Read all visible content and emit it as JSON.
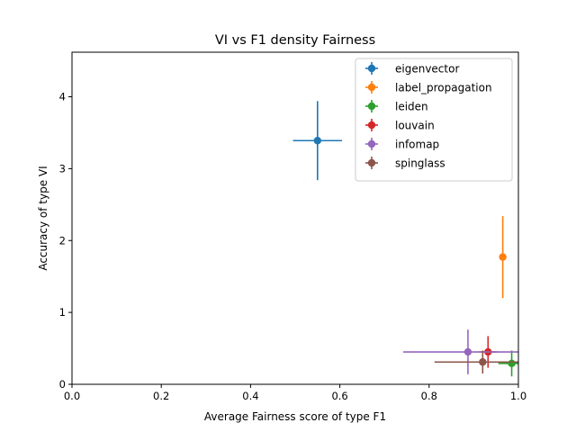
{
  "chart_data": {
    "type": "scatter",
    "title": "VI vs F1 density Fairness",
    "xlabel": "Average Fairness score of type F1",
    "ylabel": "Accuracy of type VI",
    "xlim": [
      0.0,
      1.0
    ],
    "ylim": [
      0.0,
      4.62
    ],
    "xticks": [
      "0.0",
      "0.2",
      "0.4",
      "0.6",
      "0.8",
      "1.0"
    ],
    "yticks": [
      "0",
      "1",
      "2",
      "3",
      "4"
    ],
    "grid": false,
    "legend_position": "top-right",
    "error_bars": true,
    "series": [
      {
        "name": "eigenvector",
        "color": "#1f77b4",
        "x": 0.55,
        "y": 3.39,
        "xerr": 0.055,
        "yerr": 0.55
      },
      {
        "name": "label_propagation",
        "color": "#ff7f0e",
        "x": 0.965,
        "y": 1.77,
        "xerr": 0.008,
        "yerr": 0.57
      },
      {
        "name": "leiden",
        "color": "#2ca02c",
        "x": 0.985,
        "y": 0.29,
        "xerr": 0.03,
        "yerr": 0.18
      },
      {
        "name": "louvain",
        "color": "#d62728",
        "x": 0.932,
        "y": 0.45,
        "xerr": 0.02,
        "yerr": 0.22
      },
      {
        "name": "infomap",
        "color": "#9467bd",
        "x": 0.887,
        "y": 0.45,
        "xerr": 0.145,
        "yerr": 0.31
      },
      {
        "name": "spinglass",
        "color": "#8c564b",
        "x": 0.92,
        "y": 0.31,
        "xerr": 0.108,
        "yerr": 0.16
      }
    ]
  }
}
